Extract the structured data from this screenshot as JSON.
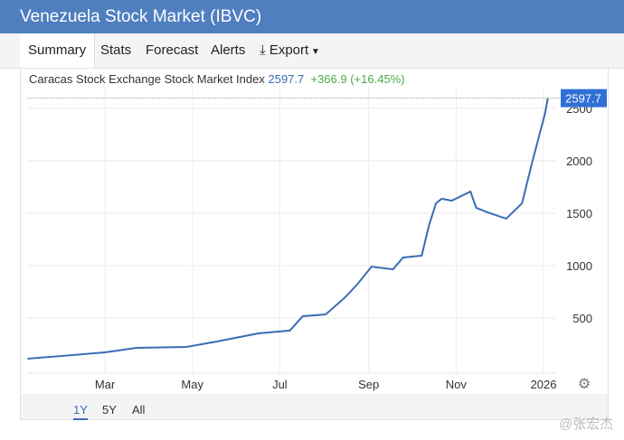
{
  "title": "Venezuela Stock Market (IBVC)",
  "tabs": [
    "Summary",
    "Stats",
    "Forecast",
    "Alerts",
    "Export"
  ],
  "subtitle": {
    "name": "Caracas Stock Exchange Stock Market Index",
    "value": "2597.7",
    "change": "+366.9 (+16.45%)"
  },
  "ranges": [
    "1Y",
    "5Y",
    "All"
  ],
  "watermark": "@张宏杰",
  "colors": {
    "header": "#4f7fbf",
    "line": "#3a6cb5",
    "up": "#4aaa4a"
  },
  "chart_data": {
    "type": "line",
    "title": "Caracas Stock Exchange Stock Market Index",
    "xlabel": "",
    "ylabel": "",
    "x_unit": "day of 2025",
    "xticks": [
      {
        "label": "Mar",
        "day": 59
      },
      {
        "label": "May",
        "day": 120
      },
      {
        "label": "Jul",
        "day": 181
      },
      {
        "label": "Sep",
        "day": 243
      },
      {
        "label": "Nov",
        "day": 304
      },
      {
        "label": "2026",
        "day": 365
      }
    ],
    "yticks": [
      500,
      1000,
      1500,
      2000,
      2500
    ],
    "ylim": [
      0,
      2600
    ],
    "xlim": [
      5,
      368
    ],
    "last_value_label": "2597.7",
    "series": [
      {
        "name": "IBVC",
        "x": [
          5,
          36,
          59,
          81,
          116,
          137,
          166,
          188,
          197,
          213,
          226,
          235,
          245,
          260,
          267,
          280,
          285,
          290,
          294,
          301,
          314,
          318,
          326,
          339,
          350,
          357,
          362,
          366,
          368
        ],
        "values": [
          112,
          146,
          172,
          215,
          224,
          276,
          353,
          380,
          517,
          534,
          690,
          820,
          990,
          965,
          1078,
          1095,
          1380,
          1595,
          1638,
          1620,
          1707,
          1552,
          1508,
          1448,
          1595,
          1983,
          2241,
          2450,
          2598
        ]
      }
    ]
  }
}
